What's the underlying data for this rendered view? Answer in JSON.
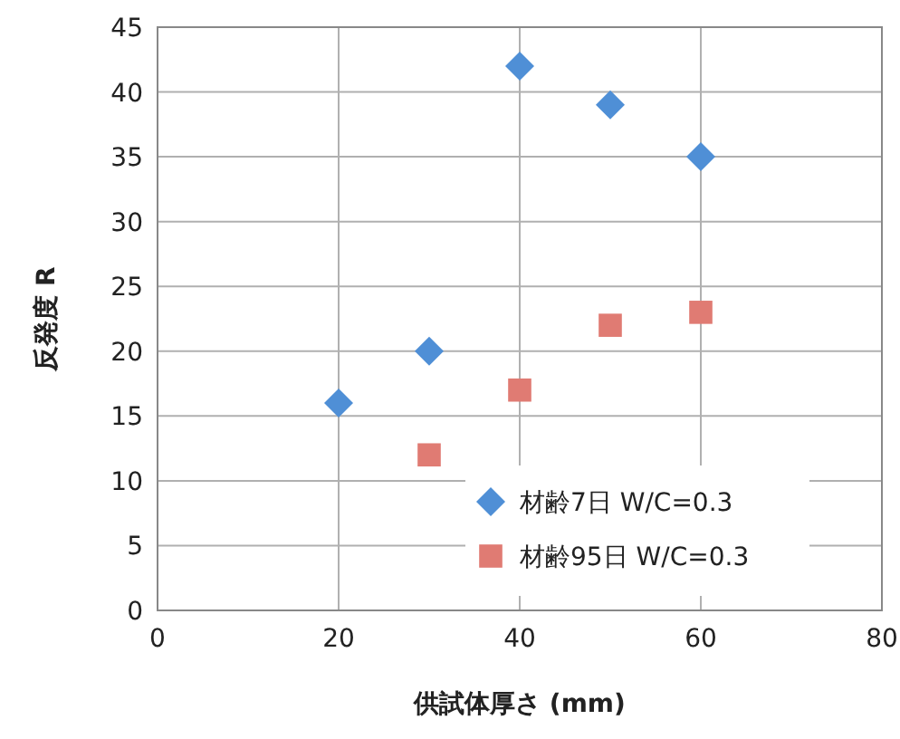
{
  "chart_data": {
    "type": "scatter",
    "xlabel": "供試体厚さ (mm)",
    "ylabel": "反発度 R",
    "xlim": [
      0,
      80
    ],
    "xticks": [
      0,
      20,
      40,
      60,
      80
    ],
    "ylim": [
      0,
      45
    ],
    "yticks": [
      0,
      5,
      10,
      15,
      20,
      25,
      30,
      35,
      40,
      45
    ],
    "grid": true,
    "legend": "bottom right",
    "series": [
      {
        "name": "材齢7日 W/C=0.3",
        "color": "#4f8fd6",
        "marker": "diamond",
        "x": [
          20,
          30,
          40,
          50,
          60
        ],
        "values": [
          16,
          20,
          42,
          39,
          35
        ]
      },
      {
        "name": "材齢95日 W/C=0.3",
        "color": "#e07b73",
        "marker": "square",
        "x": [
          30,
          40,
          50,
          60
        ],
        "values": [
          12,
          17,
          22,
          23
        ]
      }
    ]
  }
}
